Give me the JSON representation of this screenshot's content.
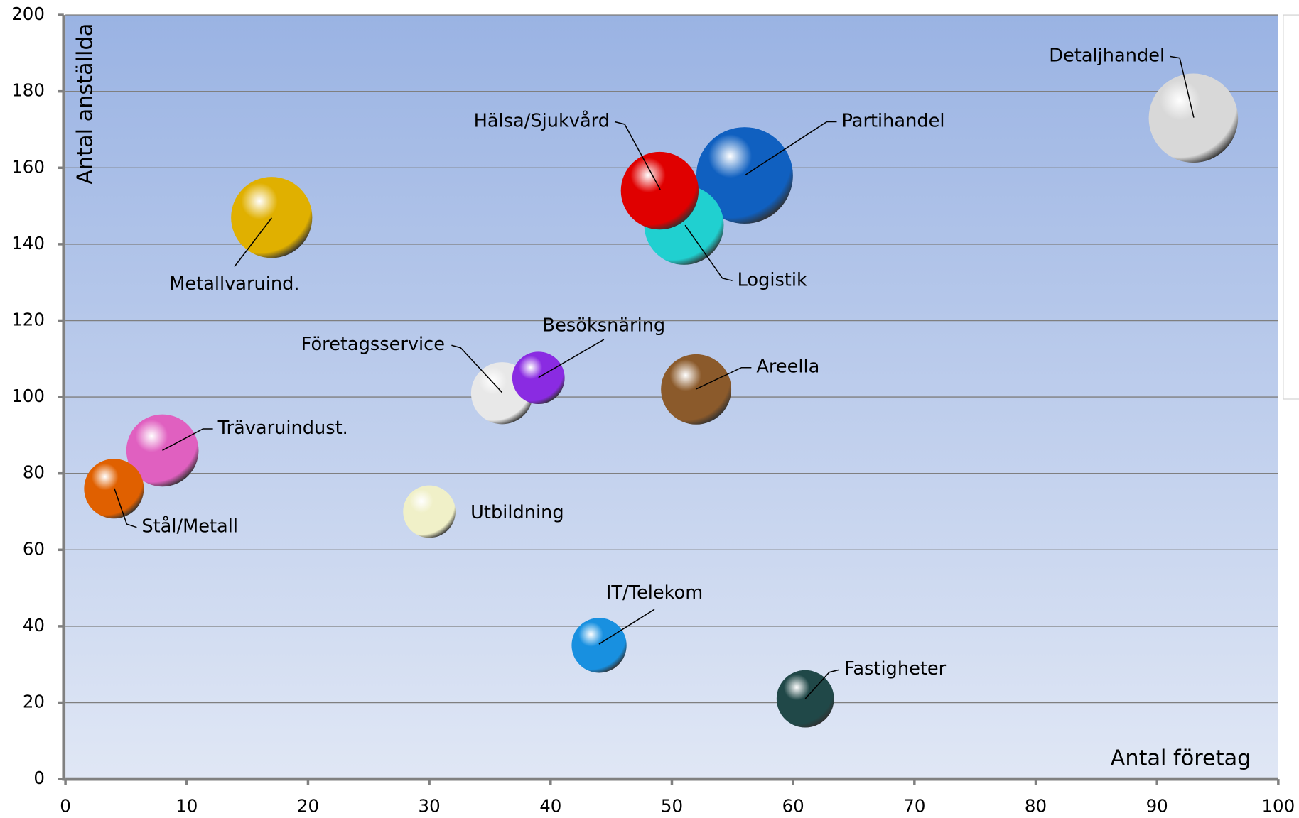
{
  "chart_data": {
    "type": "bubble",
    "x_label": "Antal företag",
    "y_label": "Antal anställda",
    "xlim": [
      0,
      100
    ],
    "xticks": [
      0,
      10,
      20,
      30,
      40,
      50,
      60,
      70,
      80,
      90,
      100
    ],
    "ylim": [
      0,
      200
    ],
    "yticks": [
      0,
      20,
      40,
      60,
      80,
      100,
      120,
      140,
      160,
      180,
      200
    ],
    "grid": true,
    "points": [
      {
        "label": "Detaljhandel",
        "x": 93,
        "y": 173,
        "size": 29,
        "color": "#d8d8d8"
      },
      {
        "label": "Partihandel",
        "x": 56,
        "y": 158,
        "size": 34,
        "color": "#1060c0"
      },
      {
        "label": "Logistik",
        "x": 51,
        "y": 145,
        "size": 23,
        "color": "#20d0d0"
      },
      {
        "label": "Hälsa/Sjukvård",
        "x": 49,
        "y": 154,
        "size": 22,
        "color": "#e00000"
      },
      {
        "label": "Metallvaruind.",
        "x": 17,
        "y": 147,
        "size": 24,
        "color": "#e0b000"
      },
      {
        "label": "Företagsservice",
        "x": 36,
        "y": 101,
        "size": 14,
        "color": "#e8e8e8"
      },
      {
        "label": "Besöksnäring",
        "x": 39,
        "y": 105,
        "size": 10,
        "color": "#8a2be2"
      },
      {
        "label": "Areella",
        "x": 52,
        "y": 102,
        "size": 18,
        "color": "#8b5a2b"
      },
      {
        "label": "Trävaruindust.",
        "x": 8,
        "y": 86,
        "size": 19,
        "color": "#e060c0"
      },
      {
        "label": "Stål/Metall",
        "x": 4,
        "y": 76,
        "size": 13,
        "color": "#e06000"
      },
      {
        "label": "Utbildning",
        "x": 30,
        "y": 70,
        "size": 10,
        "color": "#f0f0c8"
      },
      {
        "label": "IT/Telekom",
        "x": 44,
        "y": 35,
        "size": 11,
        "color": "#1890e0"
      },
      {
        "label": "Fastigheter",
        "x": 61,
        "y": 21,
        "size": 12,
        "color": "#204848"
      }
    ]
  }
}
